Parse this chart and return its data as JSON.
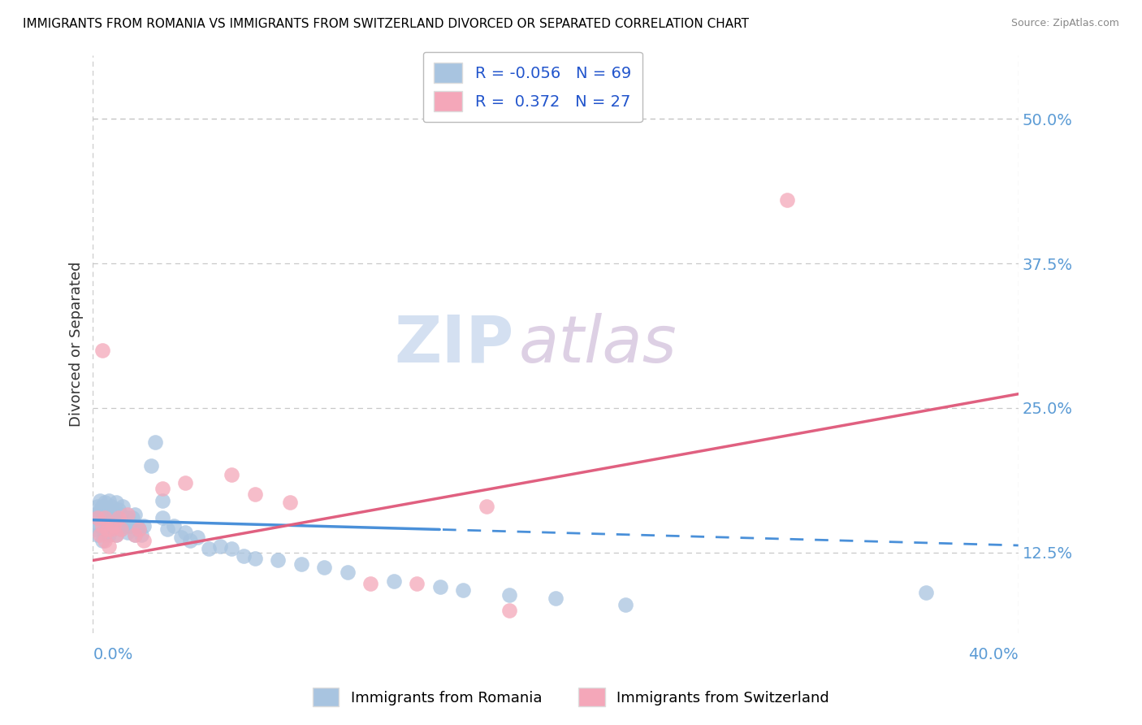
{
  "title": "IMMIGRANTS FROM ROMANIA VS IMMIGRANTS FROM SWITZERLAND DIVORCED OR SEPARATED CORRELATION CHART",
  "source": "Source: ZipAtlas.com",
  "ylabel_label": "Divorced or Separated",
  "legend_label1": "Immigrants from Romania",
  "legend_label2": "Immigrants from Switzerland",
  "R1": "-0.056",
  "N1": "69",
  "R2": "0.372",
  "N2": "27",
  "ytick_positions": [
    0.125,
    0.25,
    0.375,
    0.5
  ],
  "ytick_labels": [
    "12.5%",
    "25.0%",
    "37.5%",
    "50.0%"
  ],
  "color1": "#a8c4e0",
  "color2": "#f4a7b9",
  "line1_color": "#4a90d9",
  "line2_color": "#e06080",
  "xlim": [
    0.0,
    0.4
  ],
  "ylim": [
    0.055,
    0.555
  ],
  "romania_x": [
    0.001,
    0.001,
    0.002,
    0.002,
    0.002,
    0.003,
    0.003,
    0.003,
    0.004,
    0.004,
    0.004,
    0.005,
    0.005,
    0.005,
    0.006,
    0.006,
    0.007,
    0.007,
    0.007,
    0.008,
    0.008,
    0.009,
    0.009,
    0.01,
    0.01,
    0.01,
    0.011,
    0.011,
    0.012,
    0.012,
    0.013,
    0.013,
    0.014,
    0.015,
    0.015,
    0.016,
    0.017,
    0.018,
    0.018,
    0.019,
    0.02,
    0.021,
    0.022,
    0.025,
    0.027,
    0.03,
    0.03,
    0.032,
    0.035,
    0.038,
    0.04,
    0.042,
    0.045,
    0.05,
    0.055,
    0.06,
    0.065,
    0.07,
    0.08,
    0.09,
    0.1,
    0.11,
    0.13,
    0.15,
    0.16,
    0.18,
    0.2,
    0.23,
    0.36
  ],
  "romania_y": [
    0.145,
    0.158,
    0.14,
    0.155,
    0.165,
    0.148,
    0.162,
    0.17,
    0.135,
    0.155,
    0.165,
    0.14,
    0.155,
    0.168,
    0.145,
    0.158,
    0.14,
    0.155,
    0.17,
    0.145,
    0.165,
    0.15,
    0.16,
    0.14,
    0.155,
    0.168,
    0.148,
    0.162,
    0.145,
    0.158,
    0.15,
    0.165,
    0.148,
    0.142,
    0.155,
    0.148,
    0.155,
    0.14,
    0.158,
    0.148,
    0.145,
    0.14,
    0.148,
    0.2,
    0.22,
    0.155,
    0.17,
    0.145,
    0.148,
    0.138,
    0.142,
    0.135,
    0.138,
    0.128,
    0.13,
    0.128,
    0.122,
    0.12,
    0.118,
    0.115,
    0.112,
    0.108,
    0.1,
    0.095,
    0.092,
    0.088,
    0.085,
    0.08,
    0.09
  ],
  "switzerland_x": [
    0.002,
    0.003,
    0.004,
    0.004,
    0.005,
    0.005,
    0.006,
    0.007,
    0.008,
    0.009,
    0.01,
    0.011,
    0.012,
    0.015,
    0.018,
    0.02,
    0.022,
    0.03,
    0.04,
    0.06,
    0.07,
    0.085,
    0.12,
    0.14,
    0.18,
    0.3,
    0.17
  ],
  "switzerland_y": [
    0.155,
    0.14,
    0.148,
    0.3,
    0.135,
    0.155,
    0.145,
    0.13,
    0.145,
    0.148,
    0.14,
    0.155,
    0.145,
    0.158,
    0.14,
    0.145,
    0.135,
    0.18,
    0.185,
    0.192,
    0.175,
    0.168,
    0.098,
    0.098,
    0.075,
    0.43,
    0.165
  ],
  "line1_x_solid_end": 0.15,
  "line2_x_solid_end": 0.4,
  "line1_intercept": 0.153,
  "line1_slope": -0.055,
  "line2_intercept": 0.118,
  "line2_slope": 0.36
}
